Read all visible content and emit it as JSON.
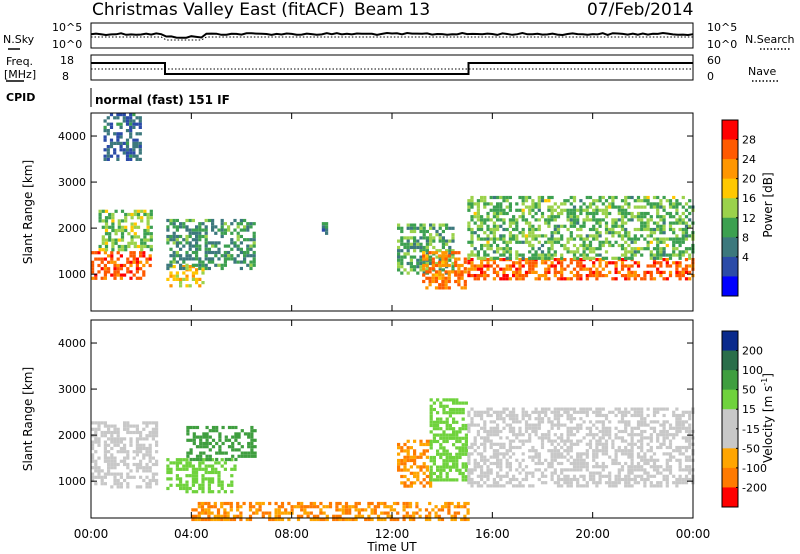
{
  "header": {
    "title": "Christmas Valley East (fitACF)",
    "beam": "Beam 13",
    "date": "07/Feb/2014"
  },
  "panels": {
    "nsky_label": "N.Sky",
    "nsky_ticks": [
      "10^5",
      "10^0"
    ],
    "nsearch_label": "N.Search",
    "nsearch_ticks": [
      "10^5",
      "10^0"
    ],
    "freq_label_line1": "Freq.",
    "freq_label_line2": "[MHz]",
    "freq_ticks": [
      "18",
      "8"
    ],
    "nave_label": "Nave",
    "nave_ticks": [
      "60",
      "0"
    ],
    "cpid_label": "CPID",
    "cpid_text": "normal (fast) 151 IF"
  },
  "chart_data": [
    {
      "type": "heatmap",
      "name": "power",
      "ylabel": "Slant Range [km]",
      "yticks": [
        "1000",
        "2000",
        "3000",
        "4000"
      ],
      "ylim": [
        200,
        4500
      ],
      "colorbar": {
        "label": "Power [dB]",
        "ticks": [
          "28",
          "24",
          "20",
          "16",
          "12",
          "8",
          "4"
        ],
        "colors": [
          "#ff0000",
          "#ff5a00",
          "#ff9600",
          "#ffc800",
          "#9bd24b",
          "#3ca050",
          "#3c787d",
          "#2b4ba8",
          "#0000ff"
        ]
      },
      "regions": [
        {
          "t0": 0.0,
          "t1": 2.4,
          "r0": 900,
          "r1": 1500,
          "level": 26
        },
        {
          "t0": 0.3,
          "t1": 2.4,
          "r0": 1500,
          "r1": 2400,
          "level": 14
        },
        {
          "t0": 0.5,
          "t1": 2.0,
          "r0": 3500,
          "r1": 4500,
          "level": 6
        },
        {
          "t0": 3.0,
          "t1": 4.5,
          "r0": 750,
          "r1": 1200,
          "level": 18
        },
        {
          "t0": 3.0,
          "t1": 6.5,
          "r0": 1100,
          "r1": 2200,
          "level": 10
        },
        {
          "t0": 9.2,
          "t1": 9.4,
          "r0": 1800,
          "r1": 2200,
          "level": 8
        },
        {
          "t0": 12.2,
          "t1": 14.4,
          "r0": 1000,
          "r1": 2100,
          "level": 12
        },
        {
          "t0": 13.2,
          "t1": 14.9,
          "r0": 700,
          "r1": 1500,
          "level": 24
        },
        {
          "t0": 15.0,
          "t1": 24.0,
          "r0": 900,
          "r1": 1350,
          "level": 26
        },
        {
          "t0": 15.0,
          "t1": 24.0,
          "r0": 1350,
          "r1": 2700,
          "level": 13
        }
      ]
    },
    {
      "type": "heatmap",
      "name": "velocity",
      "ylabel": "Slant Range [km]",
      "yticks": [
        "1000",
        "2000",
        "3000",
        "4000"
      ],
      "ylim": [
        200,
        4500
      ],
      "colorbar": {
        "label": "Velocity [m s",
        "label_exp": "-1",
        "label_close": "]",
        "ticks": [
          "200",
          "100",
          "50",
          "15",
          "-15",
          "-50",
          "-100",
          "-200"
        ],
        "colors": [
          "#0a2a8c",
          "#2a6e4a",
          "#3f9e3f",
          "#6fd23c",
          "#c8c8c8",
          "#c8c8c8",
          "#ffa500",
          "#ff7a00",
          "#ff0000"
        ]
      },
      "regions": [
        {
          "t0": 0.0,
          "t1": 2.6,
          "r0": 900,
          "r1": 2300,
          "level": 0
        },
        {
          "t0": 3.0,
          "t1": 5.8,
          "r0": 750,
          "r1": 1500,
          "level": 30
        },
        {
          "t0": 3.8,
          "t1": 6.5,
          "r0": 1500,
          "r1": 2200,
          "level": 70
        },
        {
          "t0": 12.2,
          "t1": 13.6,
          "r0": 900,
          "r1": 1900,
          "level": -50
        },
        {
          "t0": 13.5,
          "t1": 15.0,
          "r0": 1000,
          "r1": 2800,
          "level": 30
        },
        {
          "t0": 15.0,
          "t1": 24.0,
          "r0": 900,
          "r1": 2600,
          "level": 0
        },
        {
          "t0": 4.0,
          "t1": 15.0,
          "r0": 200,
          "r1": 550,
          "level": -50
        }
      ]
    }
  ],
  "xaxis": {
    "label": "Time UT",
    "ticks": [
      "00:00",
      "04:00",
      "08:00",
      "12:00",
      "16:00",
      "20:00",
      "00:00"
    ]
  }
}
